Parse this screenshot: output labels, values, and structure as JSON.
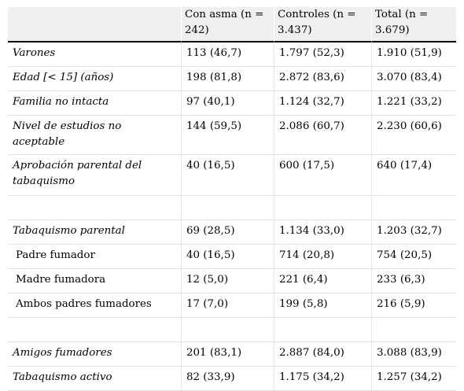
{
  "header": [
    "",
    "Con asma (n = 242)",
    "Controles (n = 3.437)",
    "Total (n = 3.679)"
  ],
  "rows": [
    {
      "label": "Varones",
      "values": [
        "113 (46,7)",
        "1.797 (52,3)",
        "1.910 (51,9)"
      ]
    },
    {
      "label": "Edad [< 15] (años)",
      "values": [
        "198 (81,8)",
        "2.872 (83,6)",
        "3.070 (83,4)"
      ]
    },
    {
      "label": "Familia no intacta",
      "values": [
        "97 (40,1)",
        "1.124 (32,7)",
        "1.221 (33,2)"
      ]
    },
    {
      "label": "Nivel de estudios no aceptable",
      "values": [
        "144 (59,5)",
        "2.086 (60,7)",
        "2.230 (60,6)"
      ]
    },
    {
      "label": "Aprobación parental del tabaquismo",
      "values": [
        "40 (16,5)",
        "600 (17,5)",
        "640 (17,4)"
      ]
    },
    {
      "label": "Tabaquismo parental",
      "values": [
        "69 (28,5)",
        "1.134 (33,0)",
        "1.203 (32,7)"
      ]
    },
    {
      "label": "Padre fumador",
      "values": [
        "40 (16,5)",
        "714 (20,8)",
        "754 (20,5)"
      ]
    },
    {
      "label": "Madre fumadora",
      "values": [
        "12 (5,0)",
        "221 (6,4)",
        "233 (6,3)"
      ]
    },
    {
      "label": "Ambos padres fumadores",
      "values": [
        "17 (7,0)",
        "199 (5,8)",
        "216 (5,9)"
      ]
    },
    {
      "label": "Amigos fumadores",
      "values": [
        "201 (83,1)",
        "2.887 (84,0)",
        "3.088 (83,9)"
      ]
    },
    {
      "label": "Tabaquismo activo",
      "values": [
        "82 (33,9)",
        "1.175 (34,2)",
        "1.257 (34,2)"
      ]
    }
  ]
}
